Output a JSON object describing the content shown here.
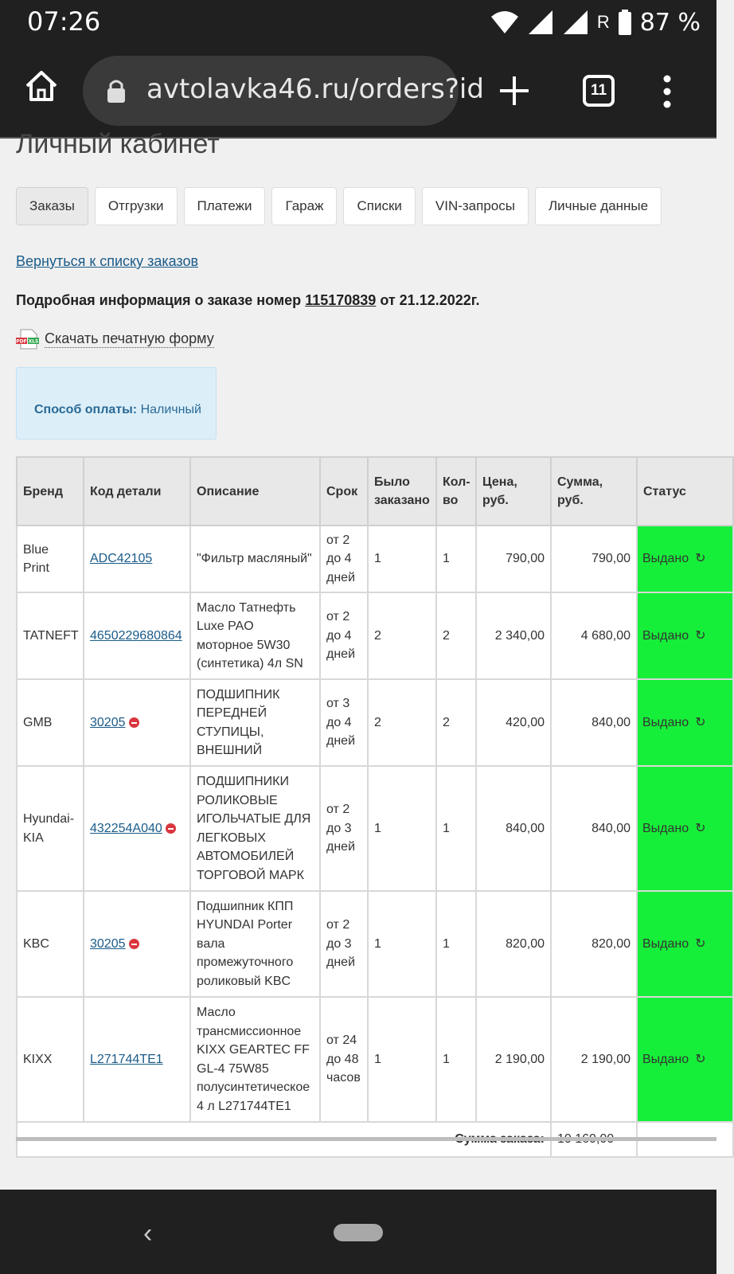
{
  "status_bar": {
    "time": "07:26",
    "network_letter": "R",
    "battery": "87 %"
  },
  "browser": {
    "url": "avtolavka46.ru/orders?id",
    "tab_count": "11"
  },
  "page": {
    "title": "Личный кабинет",
    "tabs": [
      "Заказы",
      "Отгрузки",
      "Платежи",
      "Гараж",
      "Списки",
      "VIN-запросы",
      "Личные данные"
    ],
    "back_link": "Вернуться к списку заказов",
    "order_prefix": "Подробная информация о заказе номер",
    "order_number": "115170839",
    "order_suffix": "от 21.12.2022г.",
    "print_link": "Скачать печатную форму",
    "print_icon_text": "PDF XLS",
    "payment_label": "Способ оплаты:",
    "payment_value": "Наличный"
  },
  "table": {
    "headers": [
      "Бренд",
      "Код детали",
      "Описание",
      "Срок",
      "Было заказано",
      "Кол-во",
      "Цена, руб.",
      "Сумма, руб.",
      "Статус"
    ],
    "rows": [
      {
        "brand": "Blue Print",
        "code": "ADC42105",
        "desc": "\"Фильтр масляный\"",
        "term": "от 2 до 4 дней",
        "ordered": "1",
        "qty": "1",
        "price": "790,00",
        "sum": "790,00",
        "status": "Выдано"
      },
      {
        "brand": "TATNEFT",
        "code": "4650229680864",
        "desc": "Масло Татнефть Luxe PAO моторное 5W30 (синтетика) 4л SN",
        "term": "от 2 до 4 дней",
        "ordered": "2",
        "qty": "2",
        "price": "2 340,00",
        "sum": "4 680,00",
        "status": "Выдано"
      },
      {
        "brand": "GMB",
        "code": "30205",
        "desc": "ПОДШИПНИК ПЕРЕДНЕЙ СТУПИЦЫ, ВНЕШНИЙ",
        "term": "от 3 до 4 дней",
        "ordered": "2",
        "qty": "2",
        "price": "420,00",
        "sum": "840,00",
        "status": "Выдано"
      },
      {
        "brand": "Hyundai-KIA",
        "code": "432254A040",
        "desc": "ПОДШИПНИКИ РОЛИКОВЫЕ ИГОЛЬЧАТЫЕ ДЛЯ ЛЕГКОВЫХ АВТОМОБИЛЕЙ ТОРГОВОЙ МАРК",
        "term": "от 2 до 3 дней",
        "ordered": "1",
        "qty": "1",
        "price": "840,00",
        "sum": "840,00",
        "status": "Выдано"
      },
      {
        "brand": "KBC",
        "code": "30205",
        "desc": "Подшипник КПП HYUNDAI Porter вала промежуточного роликовый KBC",
        "term": "от 2 до 3 дней",
        "ordered": "1",
        "qty": "1",
        "price": "820,00",
        "sum": "820,00",
        "status": "Выдано"
      },
      {
        "brand": "KIXX",
        "code": "L271744TE1",
        "desc": "Масло трансмиссионное KIXX GEARTEC FF GL-4 75W85 полусинтетическое 4 л L271744TE1",
        "term": "от 24 до 48 часов",
        "ordered": "1",
        "qty": "1",
        "price": "2 190,00",
        "sum": "2 190,00",
        "status": "Выдано"
      }
    ],
    "total_label": "Сумма заказа:",
    "total_value": "10 160,00"
  },
  "colors": {
    "status_green": "#16ef39",
    "link_blue": "#1a5b8a",
    "no_icon_red": "#d9363e",
    "pay_box_bg": "#dceff9"
  },
  "icons": {
    "home": "home-icon",
    "lock": "lock-icon",
    "plus": "plus-icon",
    "menu": "more-vert-icon",
    "refresh": "refresh-icon",
    "unavailable": "no-entry-icon"
  }
}
